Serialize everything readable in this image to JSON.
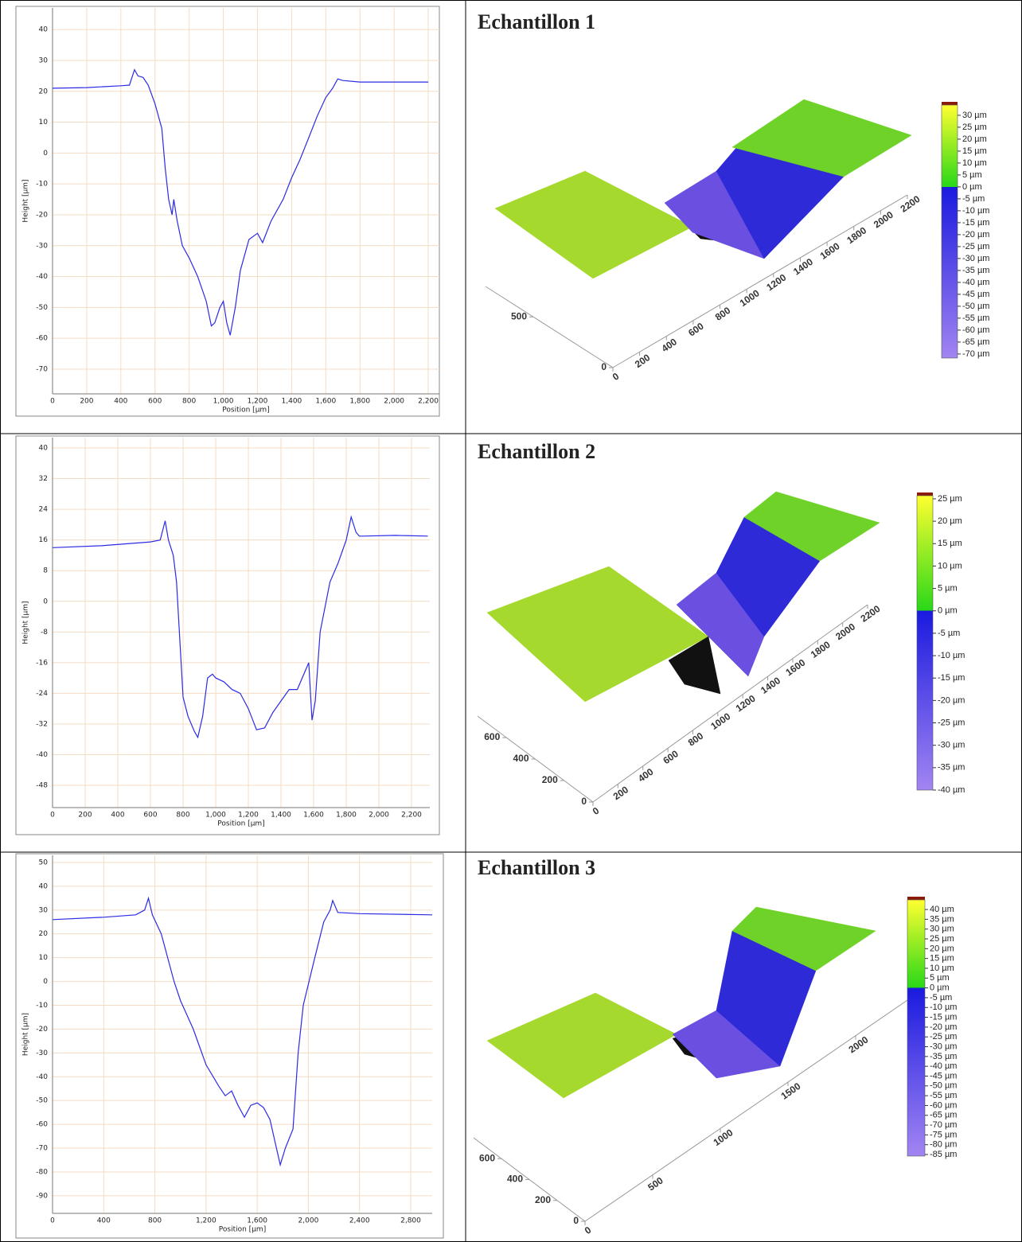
{
  "chart_data": [
    {
      "type": "line",
      "xlabel": "Position [µm]",
      "ylabel": "Height [µm]",
      "color": "#2b2be6",
      "grid": true,
      "x": [
        0,
        200,
        400,
        450,
        480,
        500,
        530,
        560,
        600,
        640,
        660,
        680,
        700,
        710,
        730,
        760,
        800,
        850,
        900,
        930,
        950,
        980,
        1000,
        1020,
        1040,
        1070,
        1100,
        1150,
        1200,
        1230,
        1280,
        1350,
        1400,
        1450,
        1500,
        1550,
        1600,
        1640,
        1670,
        1700,
        1800,
        2000,
        2200
      ],
      "values": [
        21,
        21.2,
        21.8,
        22,
        27,
        25,
        24.5,
        22,
        16,
        8,
        -5,
        -15,
        -20,
        -15,
        -22,
        -30,
        -34,
        -40,
        -48,
        -56,
        -55,
        -50,
        -48,
        -55,
        -59,
        -50,
        -38,
        -28,
        -26,
        -29,
        -22,
        -15,
        -8,
        -2,
        5,
        12,
        18,
        21,
        24,
        23.5,
        23,
        23,
        23
      ],
      "xlim": [
        0,
        2265
      ],
      "ylim": [
        -78,
        47
      ],
      "xticks": [
        0,
        200,
        400,
        600,
        800,
        {
          "value": 1000,
          "label": "1,000"
        },
        {
          "value": 1200,
          "label": "1,200"
        },
        {
          "value": 1400,
          "label": "1,400"
        },
        {
          "value": 1600,
          "label": "1,600"
        },
        {
          "value": 1800,
          "label": "1,800"
        },
        {
          "value": 2000,
          "label": "2,000"
        },
        {
          "value": 2200,
          "label": "2,200"
        }
      ],
      "yticks": [
        40,
        30,
        20,
        10,
        0,
        -10,
        -20,
        -30,
        -40,
        -50,
        -60,
        -70
      ]
    },
    {
      "type": "surface",
      "title": "Echantillon 1",
      "xlim": [
        0,
        2200
      ],
      "ylim": [
        0,
        800
      ],
      "xticks": [
        0,
        200,
        400,
        600,
        800,
        1000,
        1200,
        1400,
        1600,
        1800,
        2000,
        2200
      ],
      "yticks": [
        0,
        500
      ],
      "zlim": [
        -71.7,
        34.3
      ],
      "zticks": [
        {
          "value": 30,
          "label": "30 µm"
        },
        {
          "value": 25,
          "label": "25 µm"
        },
        {
          "value": 20,
          "label": "20 µm"
        },
        {
          "value": 15,
          "label": "15 µm"
        },
        {
          "value": 10,
          "label": "10 µm"
        },
        {
          "value": 5,
          "label": "5 µm"
        },
        {
          "value": 0,
          "label": "0 µm"
        },
        {
          "value": -5,
          "label": "-5 µm"
        },
        {
          "value": -10,
          "label": "-10 µm"
        },
        {
          "value": -15,
          "label": "-15 µm"
        },
        {
          "value": -20,
          "label": "-20 µm"
        },
        {
          "value": -25,
          "label": "-25 µm"
        },
        {
          "value": -30,
          "label": "-30 µm"
        },
        {
          "value": -35,
          "label": "-35 µm"
        },
        {
          "value": -40,
          "label": "-40 µm"
        },
        {
          "value": -45,
          "label": "-45 µm"
        },
        {
          "value": -50,
          "label": "-50 µm"
        },
        {
          "value": -55,
          "label": "-55 µm"
        },
        {
          "value": -60,
          "label": "-60 µm"
        },
        {
          "value": -65,
          "label": "-65 µm"
        },
        {
          "value": -70,
          "label": "-70 µm"
        }
      ]
    },
    {
      "type": "line",
      "xlabel": "Position [µm]",
      "ylabel": "Height [µm]",
      "color": "#2b2be6",
      "grid": true,
      "x": [
        0,
        300,
        600,
        660,
        690,
        710,
        740,
        760,
        780,
        800,
        830,
        870,
        890,
        920,
        950,
        980,
        1000,
        1050,
        1100,
        1150,
        1200,
        1250,
        1300,
        1350,
        1400,
        1450,
        1500,
        1550,
        1570,
        1590,
        1610,
        1640,
        1700,
        1750,
        1800,
        1830,
        1860,
        1880,
        1900,
        2100,
        2300
      ],
      "values": [
        14,
        14.5,
        15.5,
        16,
        21,
        16,
        12,
        5,
        -10,
        -25,
        -30,
        -34,
        -35.5,
        -30,
        -20,
        -19,
        -20,
        -21,
        -23,
        -24,
        -28,
        -33.5,
        -33,
        -29,
        -26,
        -23,
        -23,
        -18,
        -16,
        -31,
        -26,
        -8,
        5,
        10,
        16,
        22,
        18,
        17,
        17,
        17.2,
        17
      ],
      "xlim": [
        0,
        2312
      ],
      "ylim": [
        -53.8,
        42.7
      ],
      "xticks": [
        0,
        200,
        400,
        600,
        800,
        {
          "value": 1000,
          "label": "1,000"
        },
        {
          "value": 1200,
          "label": "1,200"
        },
        {
          "value": 1400,
          "label": "1,400"
        },
        {
          "value": 1600,
          "label": "1,600"
        },
        {
          "value": 1800,
          "label": "1,800"
        },
        {
          "value": 2000,
          "label": "2,000"
        },
        {
          "value": 2200,
          "label": "2,200"
        }
      ],
      "yticks": [
        40,
        32,
        24,
        16,
        8,
        0,
        -8,
        -16,
        -24,
        -32,
        -40,
        -48
      ]
    },
    {
      "type": "surface",
      "title": "Echantillon 2",
      "xlim": [
        0,
        2200
      ],
      "ylim": [
        0,
        800
      ],
      "xticks": [
        0,
        200,
        400,
        600,
        800,
        1000,
        1200,
        1400,
        1600,
        1800,
        2000,
        2200
      ],
      "yticks": [
        0,
        200,
        400,
        600
      ],
      "zlim": [
        -40,
        25.7
      ],
      "zticks": [
        {
          "value": 25,
          "label": "25 µm"
        },
        {
          "value": 20,
          "label": "20 µm"
        },
        {
          "value": 15,
          "label": "15 µm"
        },
        {
          "value": 10,
          "label": "10 µm"
        },
        {
          "value": 5,
          "label": "5 µm"
        },
        {
          "value": 0,
          "label": "0 µm"
        },
        {
          "value": -5,
          "label": "-5 µm"
        },
        {
          "value": -10,
          "label": "-10 µm"
        },
        {
          "value": -15,
          "label": "-15 µm"
        },
        {
          "value": -20,
          "label": "-20 µm"
        },
        {
          "value": -25,
          "label": "-25 µm"
        },
        {
          "value": -30,
          "label": "-30 µm"
        },
        {
          "value": -35,
          "label": "-35 µm"
        },
        {
          "value": -40,
          "label": "-40 µm"
        }
      ]
    },
    {
      "type": "line",
      "xlabel": "Position [µm]",
      "ylabel": "Height [µm]",
      "color": "#2b2be6",
      "grid": true,
      "x": [
        0,
        400,
        650,
        720,
        750,
        780,
        850,
        950,
        1000,
        1100,
        1200,
        1300,
        1350,
        1400,
        1450,
        1500,
        1550,
        1600,
        1650,
        1700,
        1750,
        1780,
        1820,
        1880,
        1920,
        1960,
        2050,
        2120,
        2170,
        2190,
        2230,
        2400,
        2968
      ],
      "values": [
        26,
        27,
        28,
        30,
        35,
        28,
        20,
        0,
        -8,
        -20,
        -35,
        -44,
        -48,
        -46,
        -52,
        -57,
        -52,
        -51,
        -53,
        -58,
        -70,
        -77,
        -70,
        -62,
        -30,
        -10,
        10,
        25,
        30,
        34,
        29,
        28.5,
        28
      ],
      "xlim": [
        0,
        2968
      ],
      "ylim": [
        -97.4,
        53
      ],
      "xticks": [
        0,
        400,
        800,
        {
          "value": 1200,
          "label": "1,200"
        },
        {
          "value": 1600,
          "label": "1,600"
        },
        {
          "value": 2000,
          "label": "2,000"
        },
        {
          "value": 2400,
          "label": "2,400"
        },
        {
          "value": 2800,
          "label": "2,800"
        }
      ],
      "yticks": [
        50,
        40,
        30,
        20,
        10,
        0,
        -10,
        -20,
        -30,
        -40,
        -50,
        -60,
        -70,
        -80,
        -90
      ]
    },
    {
      "type": "surface",
      "title": "Echantillon 3",
      "xlim": [
        0,
        2400
      ],
      "ylim": [
        0,
        800
      ],
      "xticks": [
        0,
        500,
        1000,
        1500,
        2000
      ],
      "yticks": [
        0,
        200,
        400,
        600
      ],
      "zlim": [
        -85.8,
        44.9
      ],
      "zticks": [
        {
          "value": 40,
          "label": "40 µm"
        },
        {
          "value": 35,
          "label": "35 µm"
        },
        {
          "value": 30,
          "label": "30 µm"
        },
        {
          "value": 25,
          "label": "25 µm"
        },
        {
          "value": 20,
          "label": "20 µm"
        },
        {
          "value": 15,
          "label": "15 µm"
        },
        {
          "value": 10,
          "label": "10 µm"
        },
        {
          "value": 5,
          "label": "5 µm"
        },
        {
          "value": 0,
          "label": "0 µm"
        },
        {
          "value": -5,
          "label": "-5 µm"
        },
        {
          "value": -10,
          "label": "-10 µm"
        },
        {
          "value": -15,
          "label": "-15 µm"
        },
        {
          "value": -20,
          "label": "-20 µm"
        },
        {
          "value": -25,
          "label": "-25 µm"
        },
        {
          "value": -30,
          "label": "-30 µm"
        },
        {
          "value": -35,
          "label": "-35 µm"
        },
        {
          "value": -40,
          "label": "-40 µm"
        },
        {
          "value": -45,
          "label": "-45 µm"
        },
        {
          "value": -50,
          "label": "-50 µm"
        },
        {
          "value": -55,
          "label": "-55 µm"
        },
        {
          "value": -60,
          "label": "-60 µm"
        },
        {
          "value": -65,
          "label": "-65 µm"
        },
        {
          "value": -70,
          "label": "-70 µm"
        },
        {
          "value": -75,
          "label": "-75 µm"
        },
        {
          "value": -80,
          "label": "-80 µm"
        },
        {
          "value": -85,
          "label": "-85 µm"
        }
      ]
    }
  ]
}
